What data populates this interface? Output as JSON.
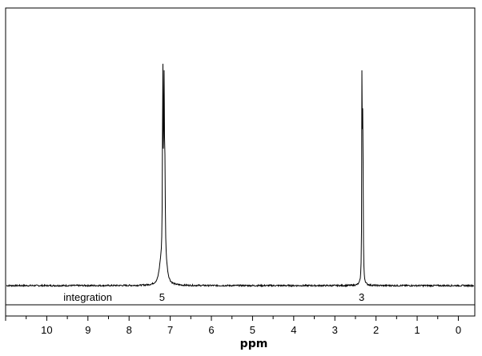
{
  "chart_data": {
    "type": "line",
    "xlabel": "ppm",
    "x_reversed": true,
    "xlim": [
      11.0,
      -0.4
    ],
    "ylim": [
      0,
      1.0
    ],
    "grid": false,
    "x_ticks": [
      10,
      9,
      8,
      7,
      6,
      5,
      4,
      3,
      2,
      1,
      0
    ],
    "x_tick_labels": [
      "10",
      "9",
      "8",
      "7",
      "6",
      "5",
      "4",
      "3",
      "2",
      "1",
      "0"
    ],
    "minor_tick_step": 0.5,
    "integration": {
      "label": "integration",
      "values": [
        {
          "ppm": 7.2,
          "text": "5"
        },
        {
          "ppm": 2.35,
          "text": "3"
        }
      ]
    },
    "peaks": [
      {
        "ppm": 7.18,
        "height": 0.78,
        "width": 0.01
      },
      {
        "ppm": 7.15,
        "height": 0.66,
        "width": 0.01
      },
      {
        "ppm": 7.13,
        "height": 0.32,
        "width": 0.012
      },
      {
        "ppm": 7.23,
        "height": 0.07,
        "width": 0.05
      },
      {
        "ppm": 7.1,
        "height": 0.05,
        "width": 0.05
      },
      {
        "ppm": 2.34,
        "height": 0.97,
        "width": 0.006
      },
      {
        "ppm": 2.32,
        "height": 0.7,
        "width": 0.008
      }
    ]
  }
}
